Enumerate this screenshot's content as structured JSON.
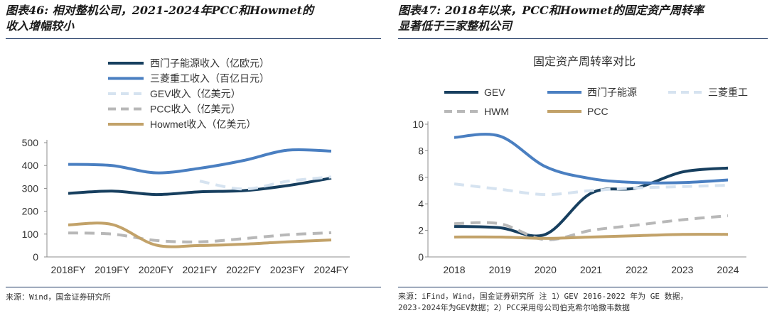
{
  "left_panel": {
    "title_line1": "图表46: 相对整机公司，2021-2024年PCC和Howmet的",
    "title_line2": "收入增幅较小",
    "source": "来源：Wind，国金证券研究所"
  },
  "right_panel": {
    "title_line1": "图表47: 2018年以来，PCC和Howmet的固定资产周转率",
    "title_line2": "显著低于三家整机公司",
    "source_line1": "来源：iFind，Wind，国金证券研究所 注 1）GEV 2016-2022 年为 GE 数据，",
    "source_line2": "2023-2024年为GEV数据；2）PCC采用母公司伯克希尔哈撒韦数据"
  },
  "chart_data": [
    {
      "type": "line",
      "title": "",
      "categories": [
        "2018FY",
        "2019FY",
        "2020FY",
        "2021FY",
        "2022FY",
        "2023FY",
        "2024FY"
      ],
      "ylim": [
        0,
        500
      ],
      "yticks": [
        0,
        100,
        200,
        300,
        400,
        500
      ],
      "legend_position": "top-left",
      "series": [
        {
          "name": "西门子能源收入（亿欧元）",
          "color": "#173f5f",
          "style": "solid",
          "values": [
            278,
            288,
            273,
            285,
            290,
            312,
            345
          ]
        },
        {
          "name": "三菱重工收入（百亿日元）",
          "color": "#4a7fc1",
          "style": "solid",
          "values": [
            405,
            400,
            368,
            388,
            422,
            467,
            463
          ]
        },
        {
          "name": "GEV收入（亿美元）",
          "color": "#d6e3f0",
          "style": "dashed",
          "values": [
            null,
            null,
            null,
            332,
            297,
            331,
            350
          ]
        },
        {
          "name": "PCC收入（亿美元）",
          "color": "#b8b8b8",
          "style": "dashed",
          "values": [
            105,
            100,
            72,
            66,
            80,
            97,
            106
          ]
        },
        {
          "name": "Howmet收入（亿美元）",
          "color": "#c2a269",
          "style": "solid",
          "values": [
            140,
            142,
            52,
            50,
            56,
            66,
            74
          ]
        }
      ]
    },
    {
      "type": "line",
      "title": "固定资产周转率对比",
      "categories": [
        "2018",
        "2019",
        "2020",
        "2021",
        "2022",
        "2023",
        "2024"
      ],
      "ylim": [
        0,
        10
      ],
      "yticks": [
        0,
        2,
        4,
        6,
        8,
        10
      ],
      "legend_position": "top",
      "series": [
        {
          "name": "GEV",
          "color": "#173f5f",
          "style": "solid",
          "values": [
            2.3,
            2.2,
            1.7,
            4.8,
            5.2,
            6.4,
            6.7
          ]
        },
        {
          "name": "西门子能源",
          "color": "#4a7fc1",
          "style": "solid",
          "values": [
            9.0,
            9.1,
            6.8,
            5.9,
            5.6,
            5.6,
            5.8
          ]
        },
        {
          "name": "三菱重工",
          "color": "#d6e3f0",
          "style": "dashed",
          "values": [
            5.5,
            5.1,
            4.7,
            5.0,
            5.2,
            5.3,
            5.4
          ]
        },
        {
          "name": "HWM",
          "color": "#b8b8b8",
          "style": "dashed",
          "values": [
            2.5,
            2.5,
            1.3,
            2.0,
            2.4,
            2.8,
            3.1
          ]
        },
        {
          "name": "PCC",
          "color": "#c2a269",
          "style": "solid",
          "values": [
            1.5,
            1.5,
            1.4,
            1.5,
            1.6,
            1.7,
            1.7
          ]
        }
      ]
    }
  ]
}
